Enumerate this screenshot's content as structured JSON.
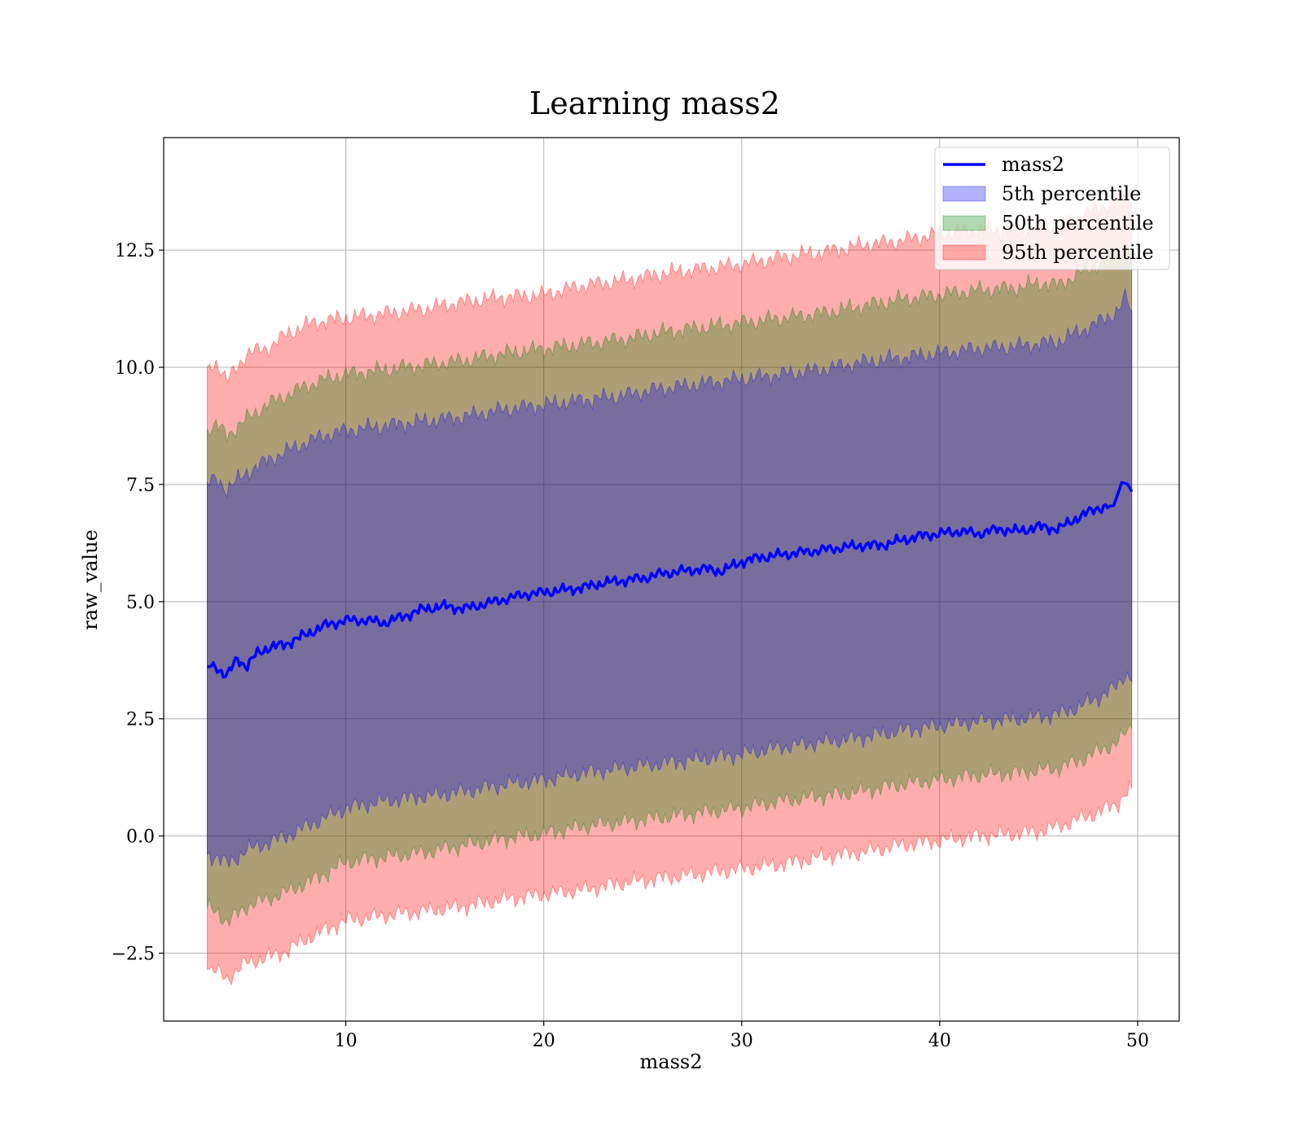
{
  "chart_data": {
    "type": "area",
    "title": "Learning mass2",
    "xlabel": "mass2",
    "ylabel": "raw_value",
    "xlim": [
      0.8,
      52.1
    ],
    "ylim": [
      -3.95,
      14.9
    ],
    "xticks": [
      10,
      20,
      30,
      40,
      50
    ],
    "xtick_labels": [
      "10",
      "20",
      "30",
      "40",
      "50"
    ],
    "yticks": [
      -2.5,
      0,
      2.5,
      5,
      7.5,
      10,
      12.5
    ],
    "ytick_labels": [
      "−2.5",
      "0.0",
      "2.5",
      "5.0",
      "7.5",
      "10.0",
      "12.5"
    ],
    "grid": true,
    "legend_position": "top-right",
    "mean": {
      "name": "mass2",
      "color": "#0000ff",
      "x": [
        3.0,
        3.4,
        3.8,
        4.0,
        4.5,
        5.0,
        5.5,
        6.0,
        7.0,
        8.0,
        9.0,
        10.0,
        11.0,
        12.0,
        13.0,
        14.0,
        15.0,
        16.0,
        17.0,
        18.0,
        19.0,
        20.0,
        21.0,
        22.0,
        23.0,
        24.0,
        25.0,
        26.0,
        27.0,
        28.0,
        29.0,
        30.0,
        31.0,
        32.0,
        33.0,
        34.0,
        35.0,
        36.0,
        37.0,
        38.0,
        39.0,
        40.0,
        41.0,
        42.0,
        43.0,
        44.0,
        45.0,
        46.0,
        47.0,
        48.0,
        48.8,
        49.2,
        49.5,
        49.7
      ],
      "y": [
        3.6,
        3.65,
        3.45,
        3.4,
        3.8,
        3.6,
        3.9,
        4.0,
        4.1,
        4.3,
        4.5,
        4.6,
        4.6,
        4.55,
        4.7,
        4.85,
        4.9,
        4.85,
        4.95,
        5.05,
        5.15,
        5.2,
        5.25,
        5.3,
        5.4,
        5.45,
        5.5,
        5.6,
        5.65,
        5.7,
        5.65,
        5.85,
        5.95,
        6.0,
        6.05,
        6.1,
        6.15,
        6.2,
        6.2,
        6.3,
        6.4,
        6.45,
        6.5,
        6.45,
        6.55,
        6.5,
        6.6,
        6.55,
        6.8,
        7.0,
        7.05,
        7.55,
        7.5,
        7.35
      ]
    },
    "series": [
      {
        "name": "95th percentile",
        "color": "#ff0000",
        "opacity": 0.32,
        "x": [
          3.0,
          3.5,
          4.0,
          5.0,
          6.0,
          7.0,
          8.0,
          9.0,
          10.0,
          12.0,
          14.0,
          16.0,
          18.0,
          20.0,
          22.0,
          24.0,
          26.0,
          28.0,
          30.0,
          32.0,
          34.0,
          36.0,
          38.0,
          40.0,
          42.0,
          44.0,
          45.0,
          46.0,
          47.0,
          48.0,
          49.0,
          49.4,
          49.7
        ],
        "upper": [
          10.0,
          10.1,
          9.7,
          10.3,
          10.4,
          10.7,
          10.9,
          11.0,
          11.05,
          11.15,
          11.25,
          11.4,
          11.5,
          11.55,
          11.75,
          11.85,
          12.0,
          12.1,
          12.2,
          12.35,
          12.45,
          12.6,
          12.7,
          12.85,
          12.95,
          12.9,
          13.05,
          13.0,
          13.2,
          13.4,
          13.6,
          13.8,
          13.5
        ],
        "lower": [
          -2.85,
          -2.9,
          -3.05,
          -2.7,
          -2.6,
          -2.45,
          -2.2,
          -2.0,
          -1.8,
          -1.7,
          -1.6,
          -1.5,
          -1.35,
          -1.25,
          -1.15,
          -1.0,
          -0.9,
          -0.8,
          -0.7,
          -0.6,
          -0.45,
          -0.35,
          -0.2,
          -0.1,
          0.0,
          0.05,
          0.1,
          0.2,
          0.35,
          0.5,
          0.7,
          0.9,
          1.0
        ]
      },
      {
        "name": "50th percentile",
        "color": "#008000",
        "opacity": 0.32,
        "x": [
          3.0,
          3.5,
          4.0,
          5.0,
          6.0,
          7.0,
          8.0,
          9.0,
          10.0,
          12.0,
          14.0,
          16.0,
          18.0,
          20.0,
          22.0,
          24.0,
          26.0,
          28.0,
          30.0,
          32.0,
          34.0,
          36.0,
          38.0,
          40.0,
          42.0,
          44.0,
          45.0,
          46.0,
          47.0,
          48.0,
          49.0,
          49.4,
          49.7
        ],
        "upper": [
          8.7,
          8.75,
          8.55,
          8.9,
          9.2,
          9.4,
          9.6,
          9.75,
          9.85,
          9.95,
          10.05,
          10.15,
          10.3,
          10.4,
          10.5,
          10.6,
          10.75,
          10.85,
          10.95,
          11.05,
          11.15,
          11.3,
          11.45,
          11.55,
          11.65,
          11.7,
          11.8,
          11.75,
          12.0,
          12.2,
          12.4,
          12.6,
          12.3
        ],
        "lower": [
          -1.55,
          -1.6,
          -1.85,
          -1.5,
          -1.35,
          -1.2,
          -1.0,
          -0.8,
          -0.55,
          -0.45,
          -0.35,
          -0.2,
          -0.05,
          0.05,
          0.2,
          0.3,
          0.4,
          0.5,
          0.6,
          0.75,
          0.85,
          0.95,
          1.1,
          1.2,
          1.3,
          1.35,
          1.4,
          1.45,
          1.6,
          1.8,
          2.0,
          2.2,
          2.3
        ]
      },
      {
        "name": "5th percentile",
        "color": "#0000ff",
        "opacity": 0.3,
        "x": [
          3.0,
          3.5,
          4.0,
          5.0,
          6.0,
          7.0,
          8.0,
          9.0,
          10.0,
          12.0,
          14.0,
          16.0,
          18.0,
          20.0,
          22.0,
          24.0,
          26.0,
          28.0,
          30.0,
          32.0,
          34.0,
          36.0,
          38.0,
          40.0,
          42.0,
          44.0,
          45.0,
          46.0,
          47.0,
          48.0,
          49.0,
          49.4,
          49.7
        ],
        "upper": [
          7.55,
          7.6,
          7.4,
          7.75,
          8.0,
          8.2,
          8.4,
          8.55,
          8.65,
          8.75,
          8.85,
          8.95,
          9.1,
          9.2,
          9.3,
          9.4,
          9.55,
          9.65,
          9.75,
          9.85,
          9.95,
          10.1,
          10.2,
          10.3,
          10.4,
          10.45,
          10.5,
          10.55,
          10.75,
          10.95,
          11.2,
          11.5,
          11.2
        ],
        "lower": [
          -0.4,
          -0.45,
          -0.6,
          -0.3,
          -0.15,
          0.0,
          0.2,
          0.4,
          0.6,
          0.75,
          0.85,
          0.95,
          1.1,
          1.2,
          1.35,
          1.45,
          1.55,
          1.65,
          1.75,
          1.9,
          2.0,
          2.1,
          2.25,
          2.35,
          2.45,
          2.5,
          2.55,
          2.6,
          2.75,
          2.95,
          3.2,
          3.5,
          3.3
        ]
      }
    ],
    "legend": [
      {
        "label": "mass2",
        "kind": "line",
        "color": "#0000ff"
      },
      {
        "label": "5th percentile",
        "kind": "patch",
        "color": "#0000ff"
      },
      {
        "label": "50th percentile",
        "kind": "patch",
        "color": "#008000"
      },
      {
        "label": "95th percentile",
        "kind": "patch",
        "color": "#ff0000"
      }
    ]
  }
}
